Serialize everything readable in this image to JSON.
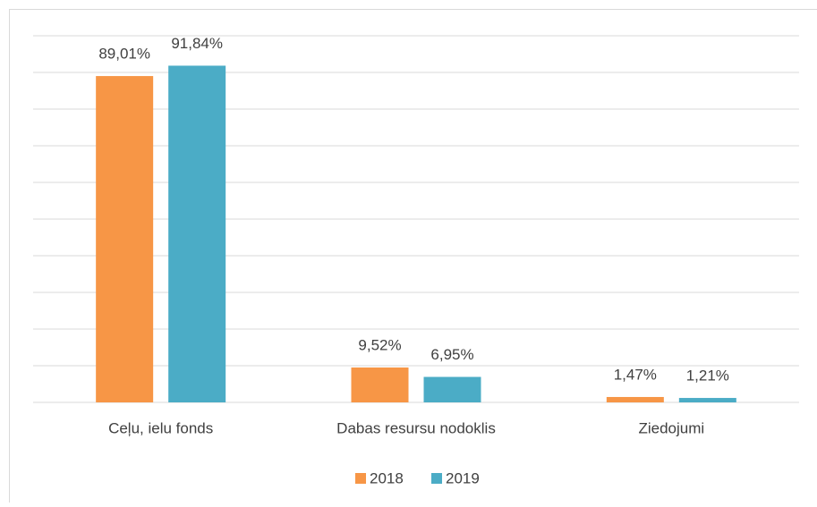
{
  "chart_data": {
    "type": "bar",
    "categories": [
      "Ceļu, ielu fonds",
      "Dabas resursu nodoklis",
      "Ziedojumi"
    ],
    "series": [
      {
        "name": "2018",
        "color": "#f79646",
        "values": [
          89.01,
          9.52,
          1.47
        ],
        "value_labels": [
          "89,01%",
          "9,52%",
          "1,47%"
        ]
      },
      {
        "name": "2019",
        "color": "#4bacc6",
        "values": [
          91.84,
          6.95,
          1.21
        ],
        "value_labels": [
          "91,84%",
          "6,95%",
          "1,21%"
        ]
      }
    ],
    "ylim": [
      0,
      100
    ],
    "yticks": [
      0,
      10,
      20,
      30,
      40,
      50,
      60,
      70,
      80,
      90,
      100
    ],
    "grid": true,
    "legend": "bottom"
  }
}
